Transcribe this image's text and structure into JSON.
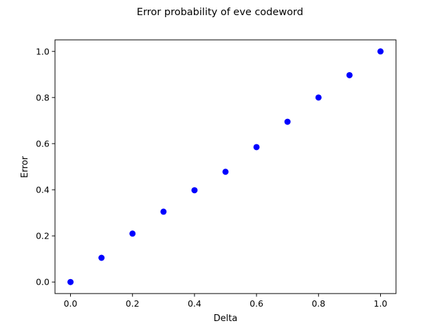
{
  "chart_data": {
    "type": "scatter",
    "title": "Error probability of eve codeword",
    "xlabel": "Delta",
    "ylabel": "Error",
    "xlim": [
      -0.05,
      1.05
    ],
    "ylim": [
      -0.05,
      1.05
    ],
    "x_ticks": [
      "0.0",
      "0.2",
      "0.4",
      "0.6",
      "0.8",
      "1.0"
    ],
    "y_ticks": [
      "0.0",
      "0.2",
      "0.4",
      "0.6",
      "0.8",
      "1.0"
    ],
    "grid": false,
    "legend": null,
    "marker_color": "#0000ff",
    "series": [
      {
        "x": [
          0.0,
          0.1,
          0.2,
          0.3,
          0.4,
          0.5,
          0.6,
          0.7,
          0.8,
          0.9,
          1.0
        ],
        "y": [
          0.0,
          0.105,
          0.21,
          0.305,
          0.398,
          0.478,
          0.585,
          0.695,
          0.8,
          0.897,
          1.0
        ]
      }
    ]
  }
}
